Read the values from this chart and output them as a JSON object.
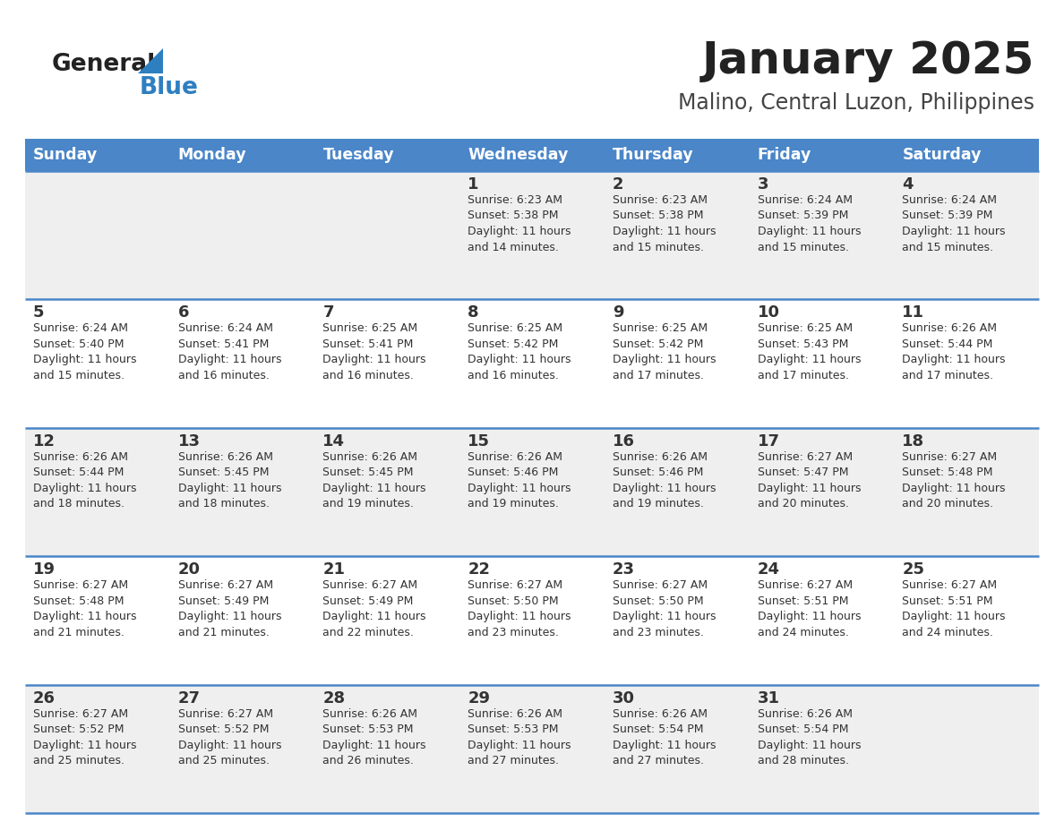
{
  "title": "January 2025",
  "subtitle": "Malino, Central Luzon, Philippines",
  "header_bg": "#4a86c8",
  "header_text": "#ffffff",
  "day_names": [
    "Sunday",
    "Monday",
    "Tuesday",
    "Wednesday",
    "Thursday",
    "Friday",
    "Saturday"
  ],
  "row_bg_odd": "#efefef",
  "row_bg_even": "#ffffff",
  "cell_text_color": "#333333",
  "day_number_color": "#333333",
  "border_color": "#4a86c8",
  "title_color": "#222222",
  "subtitle_color": "#444444",
  "general_color": "#222222",
  "blue_color": "#2e7fc0",
  "calendar": [
    [
      null,
      null,
      null,
      {
        "day": 1,
        "sunrise": "6:23 AM",
        "sunset": "5:38 PM",
        "hours": 11,
        "minutes": 14
      },
      {
        "day": 2,
        "sunrise": "6:23 AM",
        "sunset": "5:38 PM",
        "hours": 11,
        "minutes": 15
      },
      {
        "day": 3,
        "sunrise": "6:24 AM",
        "sunset": "5:39 PM",
        "hours": 11,
        "minutes": 15
      },
      {
        "day": 4,
        "sunrise": "6:24 AM",
        "sunset": "5:39 PM",
        "hours": 11,
        "minutes": 15
      }
    ],
    [
      {
        "day": 5,
        "sunrise": "6:24 AM",
        "sunset": "5:40 PM",
        "hours": 11,
        "minutes": 15
      },
      {
        "day": 6,
        "sunrise": "6:24 AM",
        "sunset": "5:41 PM",
        "hours": 11,
        "minutes": 16
      },
      {
        "day": 7,
        "sunrise": "6:25 AM",
        "sunset": "5:41 PM",
        "hours": 11,
        "minutes": 16
      },
      {
        "day": 8,
        "sunrise": "6:25 AM",
        "sunset": "5:42 PM",
        "hours": 11,
        "minutes": 16
      },
      {
        "day": 9,
        "sunrise": "6:25 AM",
        "sunset": "5:42 PM",
        "hours": 11,
        "minutes": 17
      },
      {
        "day": 10,
        "sunrise": "6:25 AM",
        "sunset": "5:43 PM",
        "hours": 11,
        "minutes": 17
      },
      {
        "day": 11,
        "sunrise": "6:26 AM",
        "sunset": "5:44 PM",
        "hours": 11,
        "minutes": 17
      }
    ],
    [
      {
        "day": 12,
        "sunrise": "6:26 AM",
        "sunset": "5:44 PM",
        "hours": 11,
        "minutes": 18
      },
      {
        "day": 13,
        "sunrise": "6:26 AM",
        "sunset": "5:45 PM",
        "hours": 11,
        "minutes": 18
      },
      {
        "day": 14,
        "sunrise": "6:26 AM",
        "sunset": "5:45 PM",
        "hours": 11,
        "minutes": 19
      },
      {
        "day": 15,
        "sunrise": "6:26 AM",
        "sunset": "5:46 PM",
        "hours": 11,
        "minutes": 19
      },
      {
        "day": 16,
        "sunrise": "6:26 AM",
        "sunset": "5:46 PM",
        "hours": 11,
        "minutes": 19
      },
      {
        "day": 17,
        "sunrise": "6:27 AM",
        "sunset": "5:47 PM",
        "hours": 11,
        "minutes": 20
      },
      {
        "day": 18,
        "sunrise": "6:27 AM",
        "sunset": "5:48 PM",
        "hours": 11,
        "minutes": 20
      }
    ],
    [
      {
        "day": 19,
        "sunrise": "6:27 AM",
        "sunset": "5:48 PM",
        "hours": 11,
        "minutes": 21
      },
      {
        "day": 20,
        "sunrise": "6:27 AM",
        "sunset": "5:49 PM",
        "hours": 11,
        "minutes": 21
      },
      {
        "day": 21,
        "sunrise": "6:27 AM",
        "sunset": "5:49 PM",
        "hours": 11,
        "minutes": 22
      },
      {
        "day": 22,
        "sunrise": "6:27 AM",
        "sunset": "5:50 PM",
        "hours": 11,
        "minutes": 23
      },
      {
        "day": 23,
        "sunrise": "6:27 AM",
        "sunset": "5:50 PM",
        "hours": 11,
        "minutes": 23
      },
      {
        "day": 24,
        "sunrise": "6:27 AM",
        "sunset": "5:51 PM",
        "hours": 11,
        "minutes": 24
      },
      {
        "day": 25,
        "sunrise": "6:27 AM",
        "sunset": "5:51 PM",
        "hours": 11,
        "minutes": 24
      }
    ],
    [
      {
        "day": 26,
        "sunrise": "6:27 AM",
        "sunset": "5:52 PM",
        "hours": 11,
        "minutes": 25
      },
      {
        "day": 27,
        "sunrise": "6:27 AM",
        "sunset": "5:52 PM",
        "hours": 11,
        "minutes": 25
      },
      {
        "day": 28,
        "sunrise": "6:26 AM",
        "sunset": "5:53 PM",
        "hours": 11,
        "minutes": 26
      },
      {
        "day": 29,
        "sunrise": "6:26 AM",
        "sunset": "5:53 PM",
        "hours": 11,
        "minutes": 27
      },
      {
        "day": 30,
        "sunrise": "6:26 AM",
        "sunset": "5:54 PM",
        "hours": 11,
        "minutes": 27
      },
      {
        "day": 31,
        "sunrise": "6:26 AM",
        "sunset": "5:54 PM",
        "hours": 11,
        "minutes": 28
      },
      null
    ]
  ]
}
